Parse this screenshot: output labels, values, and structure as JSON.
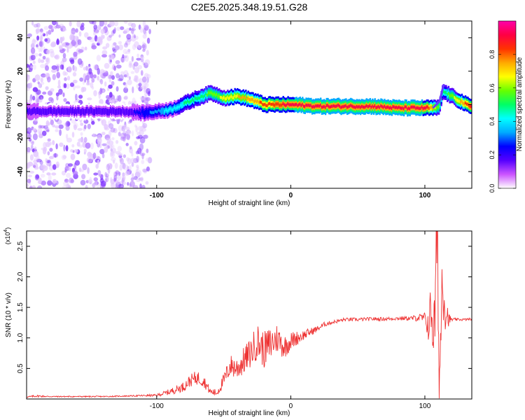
{
  "title": "C2E5.2025.348.19.51.G28",
  "chart_data": [
    {
      "id": "spectrogram",
      "type": "heatmap",
      "xlabel": "Height of straight line (km)",
      "ylabel": "Frequency (Hz)",
      "xlim": [
        -197,
        135
      ],
      "ylim": [
        -50,
        50
      ],
      "xticks": [
        -100,
        0,
        100
      ],
      "xtick_labels": [
        "-100",
        "0",
        "100"
      ],
      "yticks": [
        -40,
        -20,
        0,
        20,
        40
      ],
      "ytick_labels": [
        "-40",
        "-20",
        "0",
        "20",
        "40"
      ],
      "ridge": {
        "x": [
          -197,
          -160,
          -125,
          -110,
          -90,
          -70,
          -60,
          -50,
          -40,
          -30,
          -20,
          -10,
          0,
          20,
          40,
          60,
          80,
          100,
          110,
          113,
          135
        ],
        "freq": [
          -4,
          -4,
          -4,
          -5,
          -3,
          4,
          7,
          4,
          5,
          3,
          0,
          0,
          0,
          -1,
          -1,
          -1,
          -2,
          -2,
          -2,
          8,
          -2
        ],
        "amplitude": [
          0.25,
          0.2,
          0.2,
          0.3,
          0.45,
          0.55,
          0.6,
          0.7,
          0.75,
          0.8,
          0.85,
          0.9,
          0.95,
          0.97,
          0.97,
          0.97,
          0.97,
          0.95,
          0.6,
          0.5,
          0.95
        ]
      },
      "noise_region_km": [
        -197,
        -105
      ],
      "colorbar": {
        "label": "Normalized spectral amplitude",
        "range": [
          0,
          1
        ],
        "ticks": [
          "0.0",
          "0.2",
          "0.4",
          "0.6",
          "0.8"
        ],
        "colors": [
          "#ffffff",
          "#cc55ff",
          "#5500ff",
          "#0000ff",
          "#00aaff",
          "#00ffff",
          "#00ff66",
          "#66ff00",
          "#ffff00",
          "#ffaa00",
          "#ff3300",
          "#ff0044",
          "#ff00aa"
        ]
      }
    },
    {
      "id": "snr",
      "type": "line",
      "xlabel": "Height of straight line (km)",
      "ylabel": "SNR (10 * v/v)",
      "y_multiplier": "(x10",
      "y_multiplier_exp": "4",
      "xlim": [
        -197,
        135
      ],
      "ylim": [
        0,
        2.75
      ],
      "xticks": [
        -100,
        0,
        100
      ],
      "xtick_labels": [
        "-100",
        "0",
        "100"
      ],
      "yticks": [
        0.5,
        1.0,
        1.5,
        2.0,
        2.5
      ],
      "ytick_labels": [
        "0.5",
        "1.0",
        "1.5",
        "2.0",
        "2.5"
      ],
      "series": [
        {
          "name": "SNR",
          "color": "#ee3333",
          "x": [
            -197,
            -190,
            -180,
            -160,
            -140,
            -120,
            -100,
            -90,
            -80,
            -75,
            -70,
            -65,
            -60,
            -55,
            -50,
            -45,
            -40,
            -30,
            -25,
            -20,
            -15,
            -10,
            -5,
            0,
            10,
            20,
            25,
            30,
            40,
            50,
            60,
            70,
            80,
            90,
            95,
            100,
            103,
            105,
            107,
            109,
            111,
            113,
            115,
            118,
            120,
            125,
            130,
            135
          ],
          "y": [
            0.03,
            0.05,
            0.04,
            0.04,
            0.04,
            0.05,
            0.06,
            0.12,
            0.2,
            0.3,
            0.35,
            0.3,
            0.12,
            0.1,
            0.3,
            0.55,
            0.5,
            0.75,
            0.95,
            0.8,
            0.9,
            1.0,
            0.85,
            0.95,
            1.05,
            1.15,
            1.22,
            1.25,
            1.3,
            1.3,
            1.31,
            1.31,
            1.32,
            1.32,
            1.33,
            1.32,
            1.2,
            1.5,
            1.0,
            2.7,
            0.3,
            2.1,
            1.5,
            1.3,
            1.3,
            1.3,
            1.3,
            1.31
          ],
          "noise": [
            0.01,
            0.02,
            0.01,
            0.01,
            0.01,
            0.01,
            0.02,
            0.05,
            0.08,
            0.1,
            0.12,
            0.1,
            0.06,
            0.06,
            0.12,
            0.18,
            0.2,
            0.25,
            0.3,
            0.3,
            0.3,
            0.25,
            0.2,
            0.15,
            0.08,
            0.05,
            0.04,
            0.03,
            0.03,
            0.03,
            0.03,
            0.03,
            0.03,
            0.04,
            0.06,
            0.1,
            0.3,
            0.6,
            0.7,
            0.9,
            0.8,
            0.7,
            0.4,
            0.1,
            0.03,
            0.02,
            0.02,
            0.02
          ]
        }
      ]
    }
  ]
}
